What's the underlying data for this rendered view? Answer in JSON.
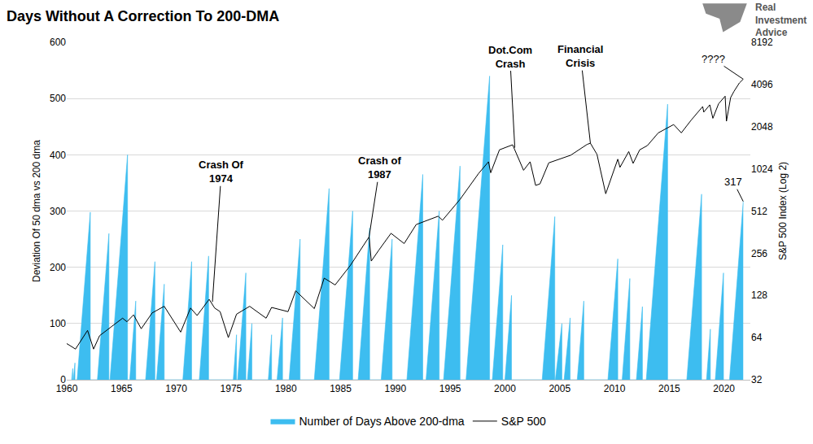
{
  "chart_data": {
    "type": "combo",
    "title": "Days Without A Correction To 200-DMA",
    "logo": "Real\nInvestment\nAdvice",
    "y_label": "Deviation Of 50 dma vs 200 dma",
    "y2_label": "S&P 500 Index (Log 2)",
    "xlim": [
      1960,
      2022.4
    ],
    "xticks": [
      1960,
      1965,
      1970,
      1975,
      1980,
      1985,
      1990,
      1995,
      2000,
      2005,
      2010,
      2015,
      2020
    ],
    "ylim": [
      0,
      600
    ],
    "yticks": [
      0,
      100,
      200,
      300,
      400,
      500,
      600
    ],
    "y2lim": [
      32,
      8192
    ],
    "y2ticks": [
      32,
      64,
      128,
      256,
      512,
      1024,
      2048,
      4096,
      8192
    ],
    "log": "y2",
    "grid": true,
    "legend": "bottom",
    "series": [
      {
        "name": "Number of Days Above 200-dma",
        "type": "area",
        "color": "#3dbdf0",
        "x": [
          1960.45,
          1960.55,
          1960.55,
          1960.6,
          1960.75,
          1960.75,
          1960.95,
          1962.15,
          1962.15,
          1962.8,
          1963.85,
          1963.85,
          1963.95,
          1965.55,
          1965.55,
          1965.75,
          1966.3,
          1966.3,
          1967.2,
          1968.05,
          1968.05,
          1968.2,
          1968.9,
          1968.9,
          1970.6,
          1971.4,
          1971.4,
          1972.1,
          1972.95,
          1972.95,
          1975.2,
          1975.5,
          1975.5,
          1975.6,
          1976.35,
          1976.35,
          1976.5,
          1976.9,
          1976.9,
          1978.4,
          1978.7,
          1978.7,
          1979.2,
          1979.7,
          1979.7,
          1980.3,
          1981.3,
          1981.3,
          1982.6,
          1983.95,
          1983.95,
          1984.9,
          1986.1,
          1986.1,
          1986.6,
          1987.65,
          1987.65,
          1988.7,
          1989.7,
          1989.7,
          1991.05,
          1992.5,
          1992.5,
          1992.8,
          1994.0,
          1994.0,
          1994.4,
          1995.9,
          1995.9,
          1996.45,
          1998.6,
          1998.6,
          1998.85,
          1999.8,
          1999.8,
          2000.0,
          2000.6,
          2000.6,
          2003.4,
          2004.55,
          2004.55,
          2004.6,
          2005.2,
          2005.2,
          2005.4,
          2005.95,
          2005.95,
          2006.6,
          2007.2,
          2007.2,
          2009.4,
          2010.3,
          2010.3,
          2010.7,
          2011.4,
          2011.4,
          2012.0,
          2012.55,
          2012.55,
          2012.9,
          2014.85,
          2014.85,
          2016.6,
          2017.95,
          2017.95,
          2018.4,
          2018.75,
          2018.75,
          2019.2,
          2019.95,
          2019.95,
          2020.5,
          2021.75
        ],
        "values": [
          0,
          20,
          0,
          0,
          30,
          0,
          0,
          298,
          0,
          0,
          260,
          0,
          0,
          400,
          0,
          0,
          140,
          0,
          0,
          210,
          0,
          0,
          170,
          0,
          0,
          210,
          0,
          0,
          220,
          0,
          0,
          80,
          0,
          0,
          190,
          0,
          0,
          100,
          0,
          0,
          80,
          0,
          0,
          110,
          0,
          0,
          250,
          0,
          0,
          340,
          0,
          0,
          300,
          0,
          0,
          270,
          0,
          0,
          250,
          0,
          0,
          365,
          0,
          0,
          300,
          0,
          0,
          380,
          0,
          0,
          540,
          0,
          0,
          240,
          0,
          0,
          150,
          0,
          0,
          290,
          0,
          0,
          100,
          0,
          0,
          110,
          0,
          0,
          140,
          0,
          0,
          215,
          0,
          0,
          180,
          0,
          0,
          130,
          0,
          0,
          490,
          0,
          0,
          330,
          0,
          0,
          90,
          0,
          0,
          190,
          0,
          0,
          317
        ]
      },
      {
        "name": "S&P 500",
        "type": "line",
        "axis": "y2",
        "color": "#000000",
        "x": [
          1960.0,
          1960.8,
          1961.9,
          1962.45,
          1963.0,
          1964.0,
          1965.1,
          1965.5,
          1966.1,
          1966.8,
          1967.8,
          1968.9,
          1970.4,
          1971.3,
          1971.9,
          1973.0,
          1973.5,
          1974.0,
          1974.75,
          1975.5,
          1976.7,
          1978.2,
          1978.7,
          1980.2,
          1980.9,
          1982.6,
          1983.5,
          1984.5,
          1985.9,
          1987.6,
          1987.8,
          1988.5,
          1989.6,
          1990.8,
          1991.9,
          1993.9,
          1994.3,
          1995.9,
          1997.6,
          1998.5,
          1998.7,
          1999.5,
          2000.2,
          2000.7,
          2001.7,
          2002.3,
          2002.8,
          2003.2,
          2004.0,
          2005.0,
          2006.0,
          2007.5,
          2007.8,
          2008.4,
          2008.9,
          2009.2,
          2010.3,
          2010.5,
          2011.3,
          2011.7,
          2012.3,
          2013.0,
          2014.0,
          2015.4,
          2016.1,
          2017.0,
          2018.05,
          2018.15,
          2018.7,
          2018.98,
          2019.5,
          2020.1,
          2020.22,
          2020.6,
          2020.9,
          2021.4,
          2021.75
        ],
        "values": [
          58,
          53,
          72,
          53,
          66,
          76,
          88,
          83,
          93,
          74,
          96,
          107,
          70,
          104,
          92,
          120,
          104,
          98,
          64,
          94,
          107,
          88,
          105,
          98,
          138,
          103,
          170,
          152,
          210,
          335,
          225,
          270,
          355,
          300,
          410,
          470,
          440,
          620,
          950,
          1150,
          960,
          1400,
          1470,
          1520,
          1000,
          1150,
          780,
          800,
          1130,
          1200,
          1280,
          1530,
          1560,
          1300,
          850,
          680,
          1200,
          1050,
          1360,
          1120,
          1400,
          1500,
          1850,
          2120,
          1850,
          2280,
          2850,
          2600,
          2930,
          2350,
          2980,
          3380,
          2240,
          3300,
          3650,
          4200,
          4470
        ]
      }
    ],
    "annotations": [
      {
        "text": "Crash Of\n1974",
        "x": 1973.3,
        "y": 115,
        "axis": "y2"
      },
      {
        "text": "Crash of\n1987",
        "x": 1987.6,
        "y": 335,
        "axis": "y2"
      },
      {
        "text": "Dot.Com\nCrash",
        "x": 2000.9,
        "y": 1450,
        "axis": "y2"
      },
      {
        "text": "Financial\nCrisis",
        "x": 2007.8,
        "y": 1560,
        "axis": "y2"
      },
      {
        "text": "????",
        "x": 2021.75,
        "y": 4470,
        "axis": "y2"
      },
      {
        "text": "317",
        "x": 2021.75,
        "y": 317,
        "axis": "y"
      }
    ]
  }
}
